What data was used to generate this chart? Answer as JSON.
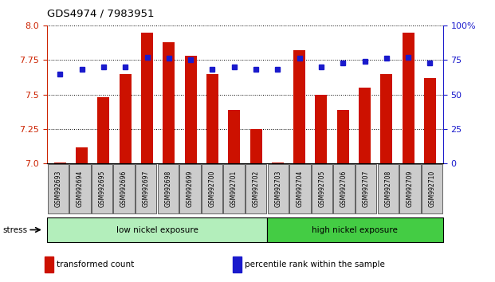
{
  "title": "GDS4974 / 7983951",
  "samples": [
    "GSM992693",
    "GSM992694",
    "GSM992695",
    "GSM992696",
    "GSM992697",
    "GSM992698",
    "GSM992699",
    "GSM992700",
    "GSM992701",
    "GSM992702",
    "GSM992703",
    "GSM992704",
    "GSM992705",
    "GSM992706",
    "GSM992707",
    "GSM992708",
    "GSM992709",
    "GSM992710"
  ],
  "transformed_count": [
    7.01,
    7.12,
    7.48,
    7.65,
    7.95,
    7.88,
    7.78,
    7.65,
    7.39,
    7.25,
    7.01,
    7.82,
    7.5,
    7.39,
    7.55,
    7.65,
    7.95,
    7.62
  ],
  "percentile_rank": [
    65,
    68,
    70,
    70,
    77,
    76,
    75,
    68,
    70,
    68,
    68,
    76,
    70,
    73,
    74,
    76,
    77,
    73
  ],
  "ylim_left": [
    7.0,
    8.0
  ],
  "ylim_right": [
    0,
    100
  ],
  "yticks_left": [
    7.0,
    7.25,
    7.5,
    7.75,
    8.0
  ],
  "yticks_right": [
    0,
    25,
    50,
    75,
    100
  ],
  "ytick_labels_right": [
    "0",
    "25",
    "50",
    "75",
    "100%"
  ],
  "bar_color": "#cc1100",
  "dot_color": "#1a1acc",
  "bar_width": 0.55,
  "group_low_label": "low nickel exposure",
  "group_high_label": "high nickel exposure",
  "group_low_color": "#b3eebb",
  "group_high_color": "#44cc44",
  "stress_label": "stress",
  "legend_items": [
    {
      "color": "#cc1100",
      "label": "transformed count"
    },
    {
      "color": "#1a1acc",
      "label": "percentile rank within the sample"
    }
  ],
  "left_axis_color": "#cc2200",
  "right_axis_color": "#1a1acc",
  "background_color": "#ffffff",
  "tick_label_bg": "#cccccc"
}
